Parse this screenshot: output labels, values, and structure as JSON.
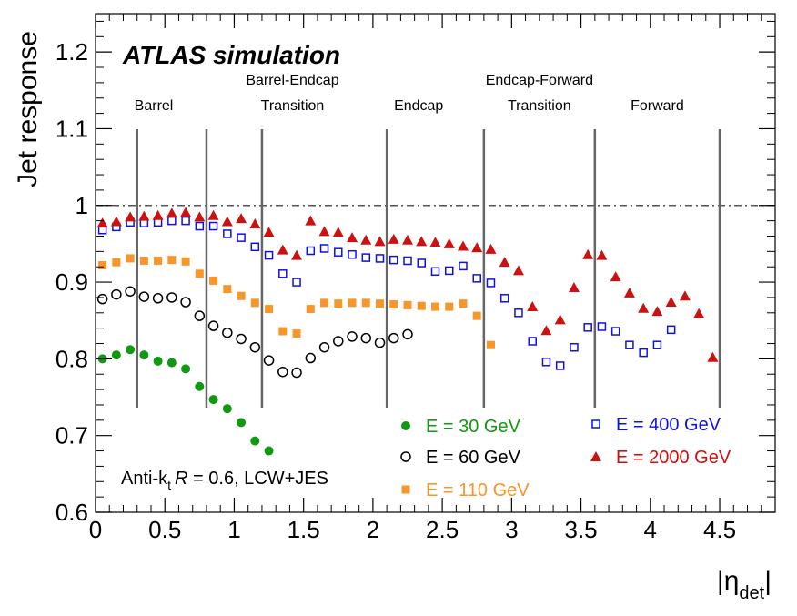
{
  "chart_data": {
    "type": "scatter",
    "title": "ATLAS simulation",
    "annotation": {
      "prefix": "Anti-k",
      "sub": "t",
      "italic": "R",
      "suffix": " = 0.6, LCW+JES"
    },
    "xlabel": {
      "main": "|η",
      "sub": "det",
      "close": "|"
    },
    "ylabel": "Jet response",
    "xlim": [
      0,
      4.9
    ],
    "ylim": [
      0.6,
      1.25
    ],
    "xticks": [
      "0",
      "0.5",
      "1",
      "1.5",
      "2",
      "2.5",
      "3",
      "3.5",
      "4",
      "4.5"
    ],
    "yticks": [
      "0.6",
      "0.7",
      "0.8",
      "0.9",
      "1",
      "1.1",
      "1.2"
    ],
    "reference_line": 1.0,
    "boundaries": [
      0.3,
      0.8,
      1.2,
      2.1,
      2.8,
      3.6,
      4.5
    ],
    "regions": [
      {
        "lines": [
          "Barrel"
        ],
        "x": 0.42
      },
      {
        "lines": [
          "Barrel-Endcap",
          "Transition"
        ],
        "x": 1.42
      },
      {
        "lines": [
          "Endcap"
        ],
        "x": 2.33
      },
      {
        "lines": [
          "Endcap-Forward",
          "Transition"
        ],
        "x": 3.2
      },
      {
        "lines": [
          "Forward"
        ],
        "x": 4.05
      }
    ],
    "series": [
      {
        "name": "E = 30 GeV",
        "color": "#119911",
        "marker": "filled-circle",
        "x": [
          0.05,
          0.15,
          0.25,
          0.35,
          0.45,
          0.55,
          0.65,
          0.75,
          0.85,
          0.95,
          1.05,
          1.15,
          1.25
        ],
        "y": [
          0.8,
          0.805,
          0.812,
          0.805,
          0.797,
          0.795,
          0.787,
          0.764,
          0.747,
          0.735,
          0.717,
          0.693,
          0.68
        ]
      },
      {
        "name": "E = 60 GeV",
        "color": "#000000",
        "marker": "open-circle",
        "x": [
          0.05,
          0.15,
          0.25,
          0.35,
          0.45,
          0.55,
          0.65,
          0.75,
          0.85,
          0.95,
          1.05,
          1.15,
          1.25,
          1.35,
          1.45,
          1.55,
          1.65,
          1.75,
          1.85,
          1.95,
          2.05,
          2.15,
          2.25
        ],
        "y": [
          0.878,
          0.884,
          0.888,
          0.881,
          0.879,
          0.88,
          0.874,
          0.856,
          0.843,
          0.834,
          0.826,
          0.815,
          0.798,
          0.783,
          0.782,
          0.801,
          0.815,
          0.823,
          0.829,
          0.827,
          0.821,
          0.827,
          0.832
        ]
      },
      {
        "name": "E = 110 GeV",
        "color": "#f7962a",
        "marker": "filled-square",
        "x": [
          0.05,
          0.15,
          0.25,
          0.35,
          0.45,
          0.55,
          0.65,
          0.75,
          0.85,
          0.95,
          1.05,
          1.15,
          1.25,
          1.35,
          1.45,
          1.55,
          1.65,
          1.75,
          1.85,
          1.95,
          2.05,
          2.15,
          2.25,
          2.35,
          2.45,
          2.55,
          2.65,
          2.75,
          2.85
        ],
        "y": [
          0.922,
          0.926,
          0.931,
          0.928,
          0.928,
          0.929,
          0.927,
          0.911,
          0.902,
          0.891,
          0.882,
          0.873,
          0.865,
          0.836,
          0.833,
          0.865,
          0.873,
          0.872,
          0.873,
          0.873,
          0.872,
          0.871,
          0.87,
          0.869,
          0.868,
          0.868,
          0.872,
          0.856,
          0.818
        ]
      },
      {
        "name": "E = 400 GeV",
        "color": "#1111dd",
        "marker": "open-square",
        "x": [
          0.05,
          0.15,
          0.25,
          0.35,
          0.45,
          0.55,
          0.65,
          0.75,
          0.85,
          0.95,
          1.05,
          1.15,
          1.25,
          1.35,
          1.45,
          1.55,
          1.65,
          1.75,
          1.85,
          1.95,
          2.05,
          2.15,
          2.25,
          2.35,
          2.45,
          2.55,
          2.65,
          2.75,
          2.85,
          2.95,
          3.05,
          3.15,
          3.25,
          3.35,
          3.45,
          3.55,
          3.65,
          3.75,
          3.85,
          3.95,
          4.05,
          4.15
        ],
        "y": [
          0.968,
          0.972,
          0.978,
          0.977,
          0.978,
          0.98,
          0.98,
          0.973,
          0.973,
          0.963,
          0.958,
          0.946,
          0.935,
          0.911,
          0.9,
          0.941,
          0.944,
          0.939,
          0.936,
          0.932,
          0.931,
          0.929,
          0.928,
          0.925,
          0.914,
          0.915,
          0.921,
          0.905,
          0.899,
          0.879,
          0.86,
          0.823,
          0.796,
          0.791,
          0.815,
          0.841,
          0.842,
          0.836,
          0.818,
          0.808,
          0.818,
          0.838
        ]
      },
      {
        "name": "E = 2000 GeV",
        "color": "#cc1111",
        "marker": "filled-triangle",
        "x": [
          0.05,
          0.15,
          0.25,
          0.35,
          0.45,
          0.55,
          0.65,
          0.75,
          0.85,
          0.95,
          1.05,
          1.15,
          1.25,
          1.35,
          1.45,
          1.55,
          1.65,
          1.75,
          1.85,
          1.95,
          2.05,
          2.15,
          2.25,
          2.35,
          2.45,
          2.55,
          2.65,
          2.75,
          2.85,
          2.95,
          3.05,
          3.15,
          3.25,
          3.35,
          3.45,
          3.55,
          3.65,
          3.75,
          3.85,
          3.95,
          4.05,
          4.15,
          4.25,
          4.35,
          4.45
        ],
        "y": [
          0.977,
          0.979,
          0.985,
          0.986,
          0.987,
          0.99,
          0.991,
          0.985,
          0.987,
          0.979,
          0.983,
          0.976,
          0.965,
          0.942,
          0.935,
          0.98,
          0.966,
          0.965,
          0.958,
          0.955,
          0.953,
          0.956,
          0.955,
          0.953,
          0.952,
          0.95,
          0.947,
          0.945,
          0.943,
          0.926,
          0.915,
          0.868,
          0.837,
          0.851,
          0.893,
          0.936,
          0.935,
          0.907,
          0.886,
          0.866,
          0.862,
          0.874,
          0.882,
          0.859,
          0.802
        ]
      }
    ],
    "legend_placement": "bottom-center"
  }
}
